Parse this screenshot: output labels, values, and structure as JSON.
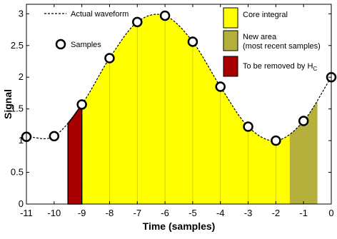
{
  "chart_data": {
    "type": "area",
    "title": "",
    "xlabel": "Time (samples)",
    "ylabel": "Signal",
    "xlim": [
      -11,
      0
    ],
    "ylim": [
      0,
      3.15
    ],
    "x_ticks": [
      -11,
      -10,
      -9,
      -8,
      -7,
      -6,
      -5,
      -4,
      -3,
      -2,
      -1,
      0
    ],
    "y_ticks": [
      0,
      0.5,
      1,
      1.5,
      2,
      2.5,
      3
    ],
    "grid": false,
    "legend_placement": "top-left and top-right",
    "waveform_legend": "Actual waveform",
    "samples_legend": "Samples",
    "samples": {
      "x": [
        -11,
        -10,
        -9,
        -8,
        -7,
        -6,
        -5,
        -4,
        -3,
        -2,
        -1,
        0
      ],
      "y": [
        1.06,
        1.07,
        1.57,
        2.3,
        2.87,
        2.97,
        2.56,
        1.85,
        1.22,
        1.0,
        1.31,
        2.0
      ]
    },
    "regions": [
      {
        "name": "Core integral",
        "x_start": -9,
        "x_end": -1.5,
        "color": "#ffff00"
      },
      {
        "name": "New area",
        "name_line2": "(most recent samples)",
        "x_start": -1.5,
        "x_end": -0.5,
        "color": "#b5b03c"
      },
      {
        "name": "To be removed by H",
        "subscript": "C",
        "x_start": -9.5,
        "x_end": -9,
        "color": "#a80000"
      }
    ]
  }
}
